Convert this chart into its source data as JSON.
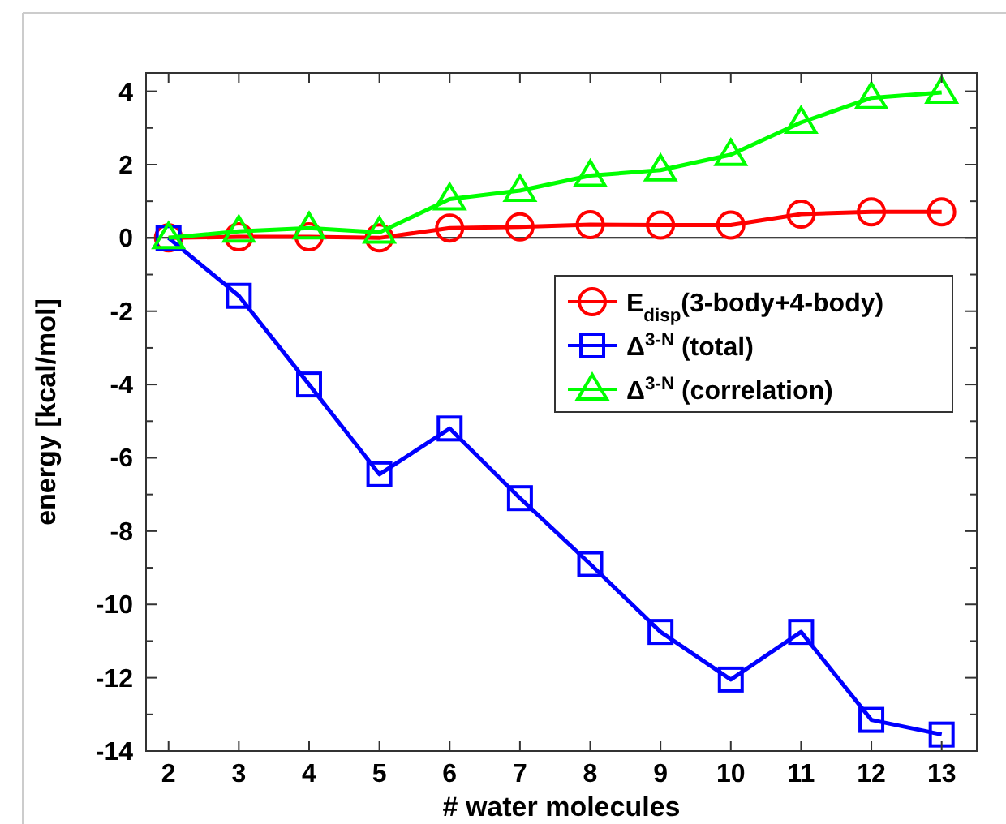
{
  "chart_data": {
    "type": "line",
    "xlabel": "# water molecules",
    "ylabel": "energy [kcal/mol]",
    "x": [
      2,
      3,
      4,
      5,
      6,
      7,
      8,
      9,
      10,
      11,
      12,
      13
    ],
    "series": [
      {
        "name": "E$_{disp}$(3-body+4-body)",
        "color": "#ff0000",
        "marker": "circle",
        "values": [
          0,
          0.03,
          0.03,
          0,
          0.27,
          0.3,
          0.36,
          0.35,
          0.35,
          0.65,
          0.71,
          0.71
        ]
      },
      {
        "name": "Δ$^{3-N}$ (total)",
        "color": "#0000ff",
        "marker": "square",
        "values": [
          0,
          -1.58,
          -4.0,
          -6.45,
          -5.2,
          -7.1,
          -8.9,
          -10.75,
          -12.05,
          -10.75,
          -13.15,
          -13.55
        ]
      },
      {
        "name": "Δ$^{3-N}$ (correlation)",
        "color": "#00ff00",
        "marker": "triangle",
        "values": [
          0,
          0.18,
          0.27,
          0.15,
          1.06,
          1.29,
          1.7,
          1.85,
          2.27,
          3.15,
          3.82,
          3.97
        ]
      }
    ],
    "xlim": [
      1.68,
      13.5
    ],
    "xticks": [
      2,
      3,
      4,
      5,
      6,
      7,
      8,
      9,
      10,
      11,
      12,
      13
    ],
    "ylim": [
      -14,
      4.5
    ],
    "yticks": [
      -14,
      {
        "value": -13,
        "label": null
      },
      -12,
      {
        "value": -11,
        "label": null
      },
      -10,
      {
        "value": -9,
        "label": null
      },
      -8,
      {
        "value": -7,
        "label": null
      },
      -6,
      {
        "value": -5,
        "label": null
      },
      -4,
      {
        "value": -3,
        "label": null
      },
      -2,
      {
        "value": -1,
        "label": null
      },
      0,
      {
        "value": 1,
        "label": null
      },
      2,
      {
        "value": 3,
        "label": null
      },
      4
    ],
    "ref_lines": [
      {
        "axis": "y",
        "value": 0,
        "color": "#000000"
      }
    ],
    "grid": false,
    "legend": "right",
    "line_style": "solid"
  }
}
